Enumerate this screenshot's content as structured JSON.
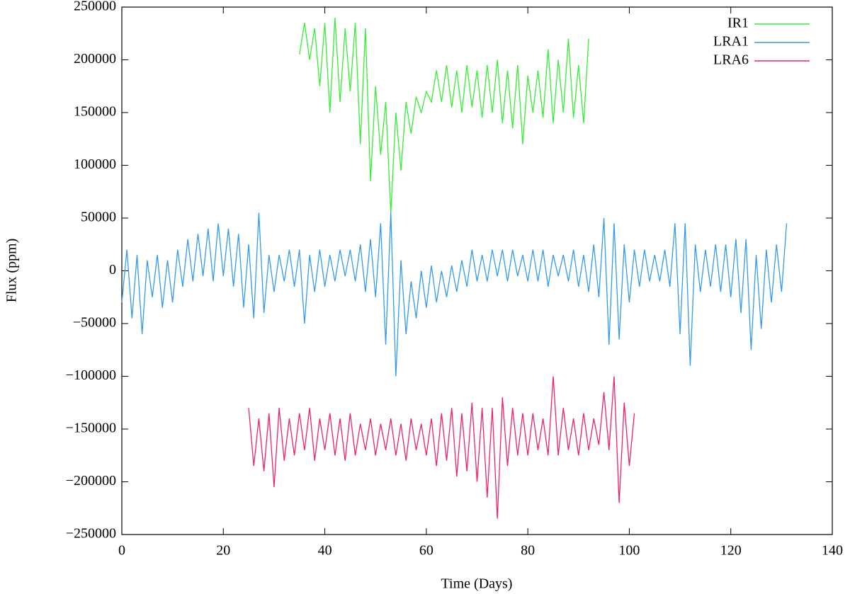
{
  "chart_data": {
    "type": "line",
    "xlabel": "Time (Days)",
    "ylabel": "Flux (ppm)",
    "xlim": [
      0,
      140
    ],
    "xticks": [
      0,
      20,
      40,
      60,
      80,
      100,
      120,
      140
    ],
    "ylim": [
      -250000,
      250000
    ],
    "yticks": [
      {
        "value": -250000,
        "label": "−250000"
      },
      {
        "value": -200000,
        "label": "−200000"
      },
      {
        "value": -150000,
        "label": "−150000"
      },
      {
        "value": -100000,
        "label": "−100000"
      },
      {
        "value": -50000,
        "label": "−50000"
      },
      0,
      50000,
      100000,
      150000,
      200000,
      250000
    ],
    "legend": "top-right",
    "series": [
      {
        "name": "IR1",
        "color": "#33ee33",
        "x": [
          35,
          36,
          37,
          38,
          39,
          40,
          41,
          42,
          43,
          44,
          45,
          46,
          47,
          48,
          49,
          50,
          51,
          52,
          53,
          54,
          55,
          56,
          57,
          58,
          59,
          60,
          61,
          62,
          63,
          64,
          65,
          66,
          67,
          68,
          69,
          70,
          71,
          72,
          73,
          74,
          75,
          76,
          77,
          78,
          79,
          80,
          81,
          82,
          83,
          84,
          85,
          86,
          87,
          88,
          89,
          90,
          91,
          92
        ],
        "values": [
          205000,
          235000,
          200000,
          230000,
          175000,
          235000,
          150000,
          240000,
          160000,
          230000,
          170000,
          235000,
          120000,
          230000,
          85000,
          175000,
          110000,
          160000,
          55000,
          150000,
          95000,
          160000,
          130000,
          165000,
          150000,
          170000,
          160000,
          190000,
          160000,
          195000,
          155000,
          190000,
          150000,
          195000,
          155000,
          190000,
          145000,
          195000,
          150000,
          200000,
          140000,
          190000,
          135000,
          195000,
          120000,
          185000,
          150000,
          190000,
          145000,
          210000,
          140000,
          200000,
          150000,
          220000,
          145000,
          195000,
          140000,
          220000
        ]
      },
      {
        "name": "LRA1",
        "color": "#3399ee",
        "x": [
          0,
          1,
          2,
          3,
          4,
          5,
          6,
          7,
          8,
          9,
          10,
          11,
          12,
          13,
          14,
          15,
          16,
          17,
          18,
          19,
          20,
          21,
          22,
          23,
          24,
          25,
          26,
          27,
          28,
          29,
          30,
          31,
          32,
          33,
          34,
          35,
          36,
          37,
          38,
          39,
          40,
          41,
          42,
          43,
          44,
          45,
          46,
          47,
          48,
          49,
          50,
          51,
          52,
          53,
          54,
          55,
          56,
          57,
          58,
          59,
          60,
          61,
          62,
          63,
          64,
          65,
          66,
          67,
          68,
          69,
          70,
          71,
          72,
          73,
          74,
          75,
          76,
          77,
          78,
          79,
          80,
          81,
          82,
          83,
          84,
          85,
          86,
          87,
          88,
          89,
          90,
          91,
          92,
          93,
          94,
          95,
          96,
          97,
          98,
          99,
          100,
          101,
          102,
          103,
          104,
          105,
          106,
          107,
          108,
          109,
          110,
          111,
          112,
          113,
          114,
          115,
          116,
          117,
          118,
          119,
          120,
          121,
          122,
          123,
          124,
          125,
          126,
          127,
          128,
          129,
          130,
          131
        ],
        "values": [
          -30000,
          20000,
          -45000,
          15000,
          -60000,
          10000,
          -25000,
          15000,
          -35000,
          10000,
          -30000,
          20000,
          -15000,
          30000,
          -10000,
          35000,
          -5000,
          40000,
          -10000,
          45000,
          -5000,
          40000,
          -15000,
          35000,
          -35000,
          25000,
          -45000,
          55000,
          -40000,
          15000,
          -20000,
          15000,
          -10000,
          20000,
          -15000,
          20000,
          -50000,
          15000,
          -20000,
          20000,
          -15000,
          15000,
          -10000,
          20000,
          -5000,
          20000,
          -10000,
          25000,
          -20000,
          30000,
          -25000,
          45000,
          -70000,
          55000,
          -100000,
          10000,
          -60000,
          -10000,
          -45000,
          0,
          -35000,
          5000,
          -30000,
          0,
          -25000,
          5000,
          -20000,
          10000,
          -15000,
          20000,
          -10000,
          15000,
          -10000,
          20000,
          -5000,
          20000,
          -10000,
          20000,
          -5000,
          15000,
          -10000,
          20000,
          -10000,
          20000,
          -15000,
          15000,
          -5000,
          15000,
          -10000,
          20000,
          -15000,
          15000,
          -20000,
          25000,
          -25000,
          50000,
          -70000,
          45000,
          -65000,
          25000,
          -30000,
          20000,
          -15000,
          20000,
          -10000,
          15000,
          -10000,
          20000,
          -15000,
          45000,
          -60000,
          45000,
          -90000,
          25000,
          -20000,
          20000,
          -15000,
          25000,
          -20000,
          25000,
          -25000,
          30000,
          -40000,
          30000,
          -75000,
          15000,
          -55000,
          20000,
          -30000,
          25000,
          -20000,
          45000
        ]
      },
      {
        "name": "LRA6",
        "color": "#ee2266",
        "x": [
          25,
          26,
          27,
          28,
          29,
          30,
          31,
          32,
          33,
          34,
          35,
          36,
          37,
          38,
          39,
          40,
          41,
          42,
          43,
          44,
          45,
          46,
          47,
          48,
          49,
          50,
          51,
          52,
          53,
          54,
          55,
          56,
          57,
          58,
          59,
          60,
          61,
          62,
          63,
          64,
          65,
          66,
          67,
          68,
          69,
          70,
          71,
          72,
          73,
          74,
          75,
          76,
          77,
          78,
          79,
          80,
          81,
          82,
          83,
          84,
          85,
          86,
          87,
          88,
          89,
          90,
          91,
          92,
          93,
          94,
          95,
          96,
          97,
          98,
          99,
          100,
          101
        ],
        "values": [
          -130000,
          -185000,
          -140000,
          -190000,
          -135000,
          -205000,
          -130000,
          -180000,
          -140000,
          -175000,
          -135000,
          -170000,
          -130000,
          -180000,
          -140000,
          -170000,
          -135000,
          -175000,
          -140000,
          -180000,
          -135000,
          -175000,
          -145000,
          -170000,
          -140000,
          -175000,
          -145000,
          -170000,
          -140000,
          -175000,
          -145000,
          -180000,
          -140000,
          -170000,
          -145000,
          -175000,
          -140000,
          -185000,
          -135000,
          -180000,
          -130000,
          -195000,
          -135000,
          -190000,
          -125000,
          -200000,
          -130000,
          -215000,
          -130000,
          -235000,
          -120000,
          -185000,
          -130000,
          -175000,
          -135000,
          -175000,
          -135000,
          -170000,
          -140000,
          -175000,
          -100000,
          -175000,
          -130000,
          -170000,
          -140000,
          -175000,
          -135000,
          -170000,
          -140000,
          -165000,
          -115000,
          -170000,
          -100000,
          -220000,
          -125000,
          -185000,
          -135000
        ]
      }
    ]
  }
}
